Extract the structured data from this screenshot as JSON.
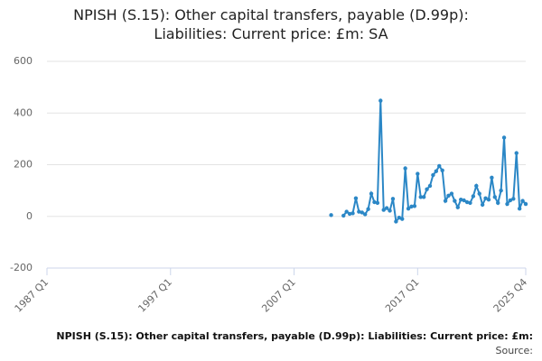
{
  "chart_data": {
    "type": "line",
    "title": "NPISH (S.15): Other capital transfers, payable (D.99p): Liabilities: Current price: £m: SA",
    "footer": "NPISH (S.15): Other capital transfers, payable (D.99p): Liabilities: Current price: £m:",
    "source": "Source:",
    "categories": [
      "1987 Q1",
      null,
      null,
      null,
      null,
      null,
      null,
      null,
      null,
      null,
      null,
      null,
      null,
      null,
      null,
      null,
      null,
      null,
      null,
      null,
      null,
      null,
      null,
      null,
      null,
      null,
      null,
      null,
      null,
      null,
      null,
      null,
      null,
      null,
      null,
      null,
      null,
      null,
      null,
      null,
      "1997 Q1",
      null,
      null,
      null,
      null,
      null,
      null,
      null,
      null,
      null,
      null,
      null,
      null,
      null,
      null,
      null,
      null,
      null,
      null,
      null,
      null,
      null,
      null,
      null,
      null,
      null,
      null,
      null,
      null,
      null,
      null,
      null,
      null,
      null,
      null,
      null,
      null,
      null,
      null,
      null,
      "2007 Q1",
      null,
      null,
      null,
      null,
      null,
      null,
      null,
      null,
      null,
      null,
      null,
      null,
      null,
      null,
      null,
      null,
      null,
      null,
      null,
      null,
      null,
      null,
      null,
      null,
      null,
      null,
      null,
      null,
      null,
      null,
      null,
      null,
      null,
      null,
      null,
      null,
      null,
      null,
      null,
      "2017 Q1",
      null,
      null,
      null,
      null,
      null,
      null,
      null,
      null,
      null,
      null,
      null,
      null,
      null,
      null,
      null,
      null,
      null,
      null,
      null,
      null,
      null,
      null,
      null,
      null,
      null,
      null,
      null,
      null,
      null,
      null,
      null,
      null,
      null,
      null,
      "2025 Q4"
    ],
    "series": [
      {
        "name": "NPISH (S.15): Other capital transfers, payable (D.99p): Liabilities: Current price: £m: SA",
        "color": "#2b87c6",
        "values": [
          null,
          null,
          null,
          null,
          null,
          null,
          null,
          null,
          null,
          null,
          null,
          null,
          null,
          null,
          null,
          null,
          null,
          null,
          null,
          null,
          null,
          null,
          null,
          null,
          null,
          null,
          null,
          null,
          null,
          null,
          null,
          null,
          null,
          null,
          null,
          null,
          null,
          null,
          null,
          null,
          null,
          null,
          null,
          null,
          null,
          null,
          null,
          null,
          null,
          null,
          null,
          null,
          null,
          null,
          null,
          null,
          null,
          null,
          null,
          null,
          null,
          null,
          null,
          null,
          null,
          null,
          null,
          null,
          null,
          null,
          null,
          null,
          null,
          null,
          null,
          null,
          null,
          null,
          null,
          null,
          null,
          null,
          null,
          null,
          null,
          null,
          null,
          null,
          null,
          null,
          null,
          null,
          5,
          null,
          null,
          null,
          3,
          18,
          10,
          12,
          70,
          18,
          15,
          8,
          28,
          88,
          55,
          52,
          448,
          25,
          32,
          22,
          68,
          -20,
          -5,
          -10,
          186,
          30,
          38,
          40,
          165,
          75,
          75,
          105,
          118,
          160,
          175,
          195,
          178,
          60,
          80,
          88,
          60,
          35,
          65,
          62,
          55,
          52,
          78,
          118,
          88,
          45,
          70,
          65,
          150,
          75,
          52,
          100,
          305,
          48,
          62,
          68,
          245,
          30,
          60,
          48
        ]
      }
    ],
    "ylim": [
      -200,
      600
    ],
    "yticks": [
      -200,
      0,
      200,
      400,
      600
    ],
    "grid": true
  }
}
